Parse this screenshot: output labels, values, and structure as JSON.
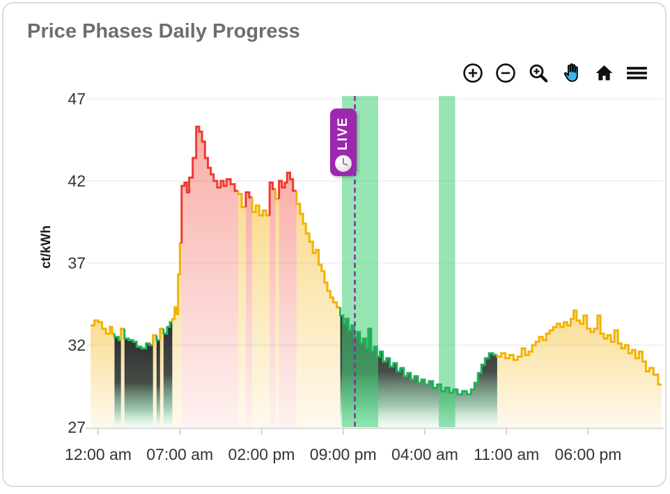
{
  "card": {
    "title": "Price Phases Daily Progress"
  },
  "toolbar": {
    "buttons": [
      {
        "name": "zoom-in",
        "icon": "circle-plus-icon",
        "active": false
      },
      {
        "name": "zoom-out",
        "icon": "circle-minus-icon",
        "active": false
      },
      {
        "name": "box-zoom",
        "icon": "magnifier-plus-icon",
        "active": false
      },
      {
        "name": "pan",
        "icon": "hand-icon",
        "active": true
      },
      {
        "name": "reset-view",
        "icon": "home-icon",
        "active": false
      },
      {
        "name": "menu",
        "icon": "hamburger-icon",
        "active": false
      }
    ]
  },
  "live_badge": {
    "label": "LIVE",
    "icon": "clock-icon"
  },
  "chart_data": {
    "type": "area",
    "title": "Price Phases Daily Progress",
    "xlabel": "",
    "ylabel": "ct/kWh",
    "grid": true,
    "legend": "none",
    "yticks": [
      27,
      32,
      37,
      42,
      47
    ],
    "ylim": [
      26.8,
      47.2
    ],
    "xlim": [
      -0.66,
      48.3
    ],
    "x_unit": "hours_from_first_midnight",
    "xticks": [
      {
        "t": 0,
        "label": "12:00 am"
      },
      {
        "t": 7,
        "label": "07:00 am"
      },
      {
        "t": 14,
        "label": "02:00 pm"
      },
      {
        "t": 21,
        "label": "09:00 pm"
      },
      {
        "t": 28,
        "label": "04:00 am"
      },
      {
        "t": 35,
        "label": "11:00 am"
      },
      {
        "t": 42,
        "label": "06:00 pm"
      }
    ],
    "phases": {
      "y": "normal",
      "r": "expensive",
      "g": "cheap"
    },
    "colors": {
      "normal_line": "#f2b200",
      "expensive_line": "#ee3a30",
      "cheap_line": "#23b25b",
      "cheap_fill_dark": "#1e1e21",
      "band": "#3fd075",
      "live": "#8e24aa",
      "badge": "#9c27b0",
      "title": "#6e6e6e",
      "axis": "#cccccc",
      "grid": "#ededed",
      "tick_text": "#333333"
    },
    "highlight_bands": [
      {
        "from": 20.9,
        "to": 24.0
      },
      {
        "from": 29.2,
        "to": 30.6
      }
    ],
    "live_line": {
      "t": 22.0,
      "label": "LIVE"
    },
    "points": [
      [
        -0.66,
        33.2,
        "y"
      ],
      [
        -0.33,
        33.5,
        "y"
      ],
      [
        0,
        33.4,
        "y"
      ],
      [
        0.33,
        33,
        "y"
      ],
      [
        0.66,
        32.7,
        "y"
      ],
      [
        1,
        33.1,
        "y"
      ],
      [
        1.2,
        32.7,
        "y"
      ],
      [
        1.4,
        32.5,
        "g"
      ],
      [
        1.75,
        32.3,
        "g"
      ],
      [
        1.95,
        33,
        "y"
      ],
      [
        2.25,
        32.4,
        "g"
      ],
      [
        2.6,
        32.3,
        "g"
      ],
      [
        3,
        32.2,
        "g"
      ],
      [
        3.3,
        31.9,
        "g"
      ],
      [
        3.7,
        31.8,
        "g"
      ],
      [
        4.1,
        32.1,
        "g"
      ],
      [
        4.4,
        32,
        "g"
      ],
      [
        4.7,
        32.6,
        "y"
      ],
      [
        5,
        32.3,
        "g"
      ],
      [
        5.3,
        33,
        "y"
      ],
      [
        5.6,
        32.7,
        "g"
      ],
      [
        5.9,
        33.1,
        "g"
      ],
      [
        6.15,
        33.4,
        "g"
      ],
      [
        6.35,
        33.6,
        "y"
      ],
      [
        6.55,
        34.3,
        "y"
      ],
      [
        6.7,
        33.9,
        "y"
      ],
      [
        6.85,
        36.3,
        "y"
      ],
      [
        7,
        38.2,
        "y"
      ],
      [
        7.15,
        41.7,
        "r"
      ],
      [
        7.4,
        41.9,
        "r"
      ],
      [
        7.6,
        41.3,
        "r"
      ],
      [
        7.8,
        42.2,
        "r"
      ],
      [
        8.1,
        43.4,
        "r"
      ],
      [
        8.4,
        45.3,
        "r"
      ],
      [
        8.65,
        45,
        "r"
      ],
      [
        8.9,
        44.4,
        "r"
      ],
      [
        9.15,
        43.4,
        "r"
      ],
      [
        9.4,
        42.8,
        "r"
      ],
      [
        9.65,
        42.4,
        "r"
      ],
      [
        9.9,
        42,
        "r"
      ],
      [
        10.2,
        41.6,
        "r"
      ],
      [
        10.5,
        42,
        "r"
      ],
      [
        10.75,
        41.7,
        "r"
      ],
      [
        11,
        42.1,
        "r"
      ],
      [
        11.35,
        41.8,
        "r"
      ],
      [
        11.7,
        41.4,
        "r"
      ],
      [
        12,
        41.2,
        "y"
      ],
      [
        12.3,
        40.4,
        "y"
      ],
      [
        12.65,
        41.3,
        "r"
      ],
      [
        12.95,
        41,
        "r"
      ],
      [
        13.2,
        40.1,
        "y"
      ],
      [
        13.5,
        40.5,
        "y"
      ],
      [
        13.8,
        39.9,
        "y"
      ],
      [
        14.1,
        40.2,
        "y"
      ],
      [
        14.4,
        39.9,
        "y"
      ],
      [
        14.7,
        41.9,
        "r"
      ],
      [
        14.95,
        41.5,
        "r"
      ],
      [
        15.2,
        40.9,
        "y"
      ],
      [
        15.5,
        42,
        "r"
      ],
      [
        15.75,
        41.6,
        "r"
      ],
      [
        16,
        41.9,
        "r"
      ],
      [
        16.2,
        42.5,
        "r"
      ],
      [
        16.45,
        42.1,
        "r"
      ],
      [
        16.7,
        41.4,
        "r"
      ],
      [
        17,
        40.6,
        "y"
      ],
      [
        17.3,
        40,
        "y"
      ],
      [
        17.55,
        39.4,
        "y"
      ],
      [
        17.8,
        38.8,
        "y"
      ],
      [
        18.1,
        38.3,
        "y"
      ],
      [
        18.4,
        37.6,
        "y"
      ],
      [
        18.65,
        37.8,
        "y"
      ],
      [
        18.9,
        36.9,
        "y"
      ],
      [
        19.15,
        36.5,
        "y"
      ],
      [
        19.4,
        35.8,
        "y"
      ],
      [
        19.65,
        35.3,
        "y"
      ],
      [
        19.9,
        34.9,
        "y"
      ],
      [
        20.15,
        34.6,
        "y"
      ],
      [
        20.45,
        34.3,
        "y"
      ],
      [
        20.75,
        33.8,
        "g"
      ],
      [
        21,
        33.3,
        "g"
      ],
      [
        21.2,
        33.6,
        "g"
      ],
      [
        21.45,
        32.9,
        "g"
      ],
      [
        21.7,
        33.2,
        "g"
      ],
      [
        21.95,
        32.5,
        "g"
      ],
      [
        22.2,
        32.8,
        "g"
      ],
      [
        22.45,
        32.1,
        "g"
      ],
      [
        22.7,
        32.4,
        "g"
      ],
      [
        22.95,
        31.8,
        "g"
      ],
      [
        23.15,
        33,
        "g"
      ],
      [
        23.4,
        31.6,
        "g"
      ],
      [
        23.65,
        31.9,
        "g"
      ],
      [
        23.9,
        31.3,
        "g"
      ],
      [
        24.15,
        31.6,
        "g"
      ],
      [
        24.4,
        31,
        "g"
      ],
      [
        24.7,
        31.2,
        "g"
      ],
      [
        25,
        30.7,
        "g"
      ],
      [
        25.3,
        30.9,
        "g"
      ],
      [
        25.6,
        30.4,
        "g"
      ],
      [
        25.9,
        30.6,
        "g"
      ],
      [
        26.2,
        30.1,
        "g"
      ],
      [
        26.5,
        30.3,
        "g"
      ],
      [
        26.8,
        29.9,
        "g"
      ],
      [
        27.1,
        30.1,
        "g"
      ],
      [
        27.4,
        29.7,
        "g"
      ],
      [
        27.7,
        29.9,
        "g"
      ],
      [
        28,
        29.6,
        "g"
      ],
      [
        28.35,
        29.8,
        "g"
      ],
      [
        28.7,
        29.4,
        "g"
      ],
      [
        29.05,
        29.6,
        "g"
      ],
      [
        29.4,
        29.2,
        "g"
      ],
      [
        29.75,
        29.4,
        "g"
      ],
      [
        30.1,
        29.1,
        "g"
      ],
      [
        30.45,
        29.3,
        "g"
      ],
      [
        30.8,
        29,
        "g"
      ],
      [
        31.2,
        29.2,
        "g"
      ],
      [
        31.6,
        29,
        "g"
      ],
      [
        31.95,
        29.3,
        "g"
      ],
      [
        32.25,
        29.7,
        "g"
      ],
      [
        32.55,
        30.3,
        "g"
      ],
      [
        32.85,
        30.8,
        "g"
      ],
      [
        33.15,
        31.2,
        "g"
      ],
      [
        33.5,
        31.5,
        "g"
      ],
      [
        33.85,
        31.4,
        "g"
      ],
      [
        34.2,
        31.3,
        "y"
      ],
      [
        34.55,
        31.5,
        "y"
      ],
      [
        34.9,
        31.2,
        "y"
      ],
      [
        35.25,
        31.4,
        "y"
      ],
      [
        35.6,
        31.1,
        "y"
      ],
      [
        35.95,
        31.3,
        "y"
      ],
      [
        36.3,
        31.8,
        "y"
      ],
      [
        36.6,
        31.4,
        "y"
      ],
      [
        36.9,
        31.6,
        "y"
      ],
      [
        37.2,
        32,
        "y"
      ],
      [
        37.5,
        32.2,
        "y"
      ],
      [
        37.8,
        32.5,
        "y"
      ],
      [
        38.1,
        32.3,
        "y"
      ],
      [
        38.4,
        32.7,
        "y"
      ],
      [
        38.7,
        32.9,
        "y"
      ],
      [
        39,
        33.1,
        "y"
      ],
      [
        39.3,
        33.3,
        "y"
      ],
      [
        39.6,
        33.1,
        "y"
      ],
      [
        39.9,
        33.4,
        "y"
      ],
      [
        40.2,
        33.2,
        "y"
      ],
      [
        40.5,
        33.6,
        "y"
      ],
      [
        40.75,
        34.1,
        "y"
      ],
      [
        41,
        33.5,
        "y"
      ],
      [
        41.3,
        33.3,
        "y"
      ],
      [
        41.6,
        33.8,
        "y"
      ],
      [
        41.9,
        33,
        "y"
      ],
      [
        42.2,
        32.8,
        "y"
      ],
      [
        42.5,
        33,
        "y"
      ],
      [
        42.8,
        33.8,
        "y"
      ],
      [
        43.05,
        32.7,
        "y"
      ],
      [
        43.35,
        32.4,
        "y"
      ],
      [
        43.65,
        32.6,
        "y"
      ],
      [
        43.95,
        32.2,
        "y"
      ],
      [
        44.25,
        32.9,
        "y"
      ],
      [
        44.55,
        32.1,
        "y"
      ],
      [
        44.85,
        31.8,
        "y"
      ],
      [
        45.15,
        32,
        "y"
      ],
      [
        45.45,
        31.5,
        "y"
      ],
      [
        45.75,
        31.7,
        "y"
      ],
      [
        46.05,
        31.2,
        "y"
      ],
      [
        46.35,
        31.6,
        "y"
      ],
      [
        46.65,
        31,
        "y"
      ],
      [
        46.95,
        30.4,
        "y"
      ],
      [
        47.25,
        30.6,
        "y"
      ],
      [
        47.6,
        30.2,
        "y"
      ],
      [
        48,
        29.6,
        "y"
      ]
    ]
  }
}
